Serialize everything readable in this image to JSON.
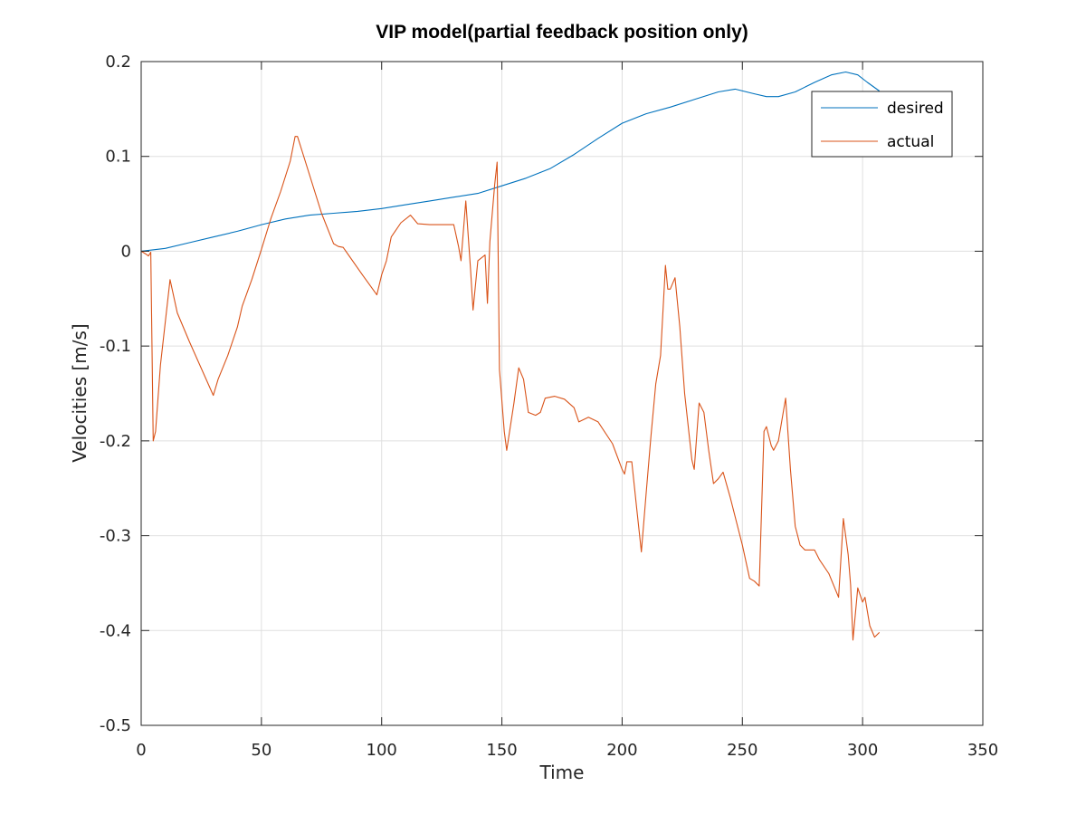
{
  "chart_data": {
    "type": "line",
    "title": "VIP model(partial feedback position only)",
    "xlabel": "Time",
    "ylabel": "Velocities [m/s]",
    "xlim": [
      0,
      350
    ],
    "ylim": [
      -0.5,
      0.2
    ],
    "xticks": [
      "0",
      "50",
      "100",
      "150",
      "200",
      "250",
      "300",
      "350"
    ],
    "yticks": [
      "0.2",
      "0.1",
      "0",
      "-0.1",
      "-0.2",
      "-0.3",
      "-0.4",
      "-0.5"
    ],
    "grid": true,
    "legend_position": "top-right",
    "series": [
      {
        "name": "desired",
        "color": "#0072BD",
        "points": [
          [
            0,
            0
          ],
          [
            10,
            0.003
          ],
          [
            20,
            0.009
          ],
          [
            30,
            0.015
          ],
          [
            40,
            0.021
          ],
          [
            50,
            0.028
          ],
          [
            60,
            0.034
          ],
          [
            70,
            0.038
          ],
          [
            80,
            0.04
          ],
          [
            90,
            0.042
          ],
          [
            100,
            0.045
          ],
          [
            110,
            0.049
          ],
          [
            120,
            0.053
          ],
          [
            130,
            0.057
          ],
          [
            140,
            0.061
          ],
          [
            150,
            0.069
          ],
          [
            160,
            0.077
          ],
          [
            170,
            0.087
          ],
          [
            180,
            0.102
          ],
          [
            190,
            0.119
          ],
          [
            200,
            0.135
          ],
          [
            210,
            0.145
          ],
          [
            220,
            0.152
          ],
          [
            230,
            0.16
          ],
          [
            240,
            0.168
          ],
          [
            247,
            0.171
          ],
          [
            255,
            0.166
          ],
          [
            260,
            0.163
          ],
          [
            265,
            0.163
          ],
          [
            272,
            0.168
          ],
          [
            280,
            0.178
          ],
          [
            287,
            0.186
          ],
          [
            293,
            0.189
          ],
          [
            298,
            0.186
          ],
          [
            302,
            0.178
          ],
          [
            307,
            0.169
          ]
        ]
      },
      {
        "name": "actual",
        "color": "#D95319",
        "points": [
          [
            0,
            0
          ],
          [
            2,
            -0.003
          ],
          [
            3,
            -0.005
          ],
          [
            4,
            -0.001
          ],
          [
            5,
            -0.2
          ],
          [
            6,
            -0.19
          ],
          [
            8,
            -0.12
          ],
          [
            12,
            -0.03
          ],
          [
            15,
            -0.065
          ],
          [
            20,
            -0.095
          ],
          [
            30,
            -0.152
          ],
          [
            32,
            -0.135
          ],
          [
            36,
            -0.11
          ],
          [
            40,
            -0.08
          ],
          [
            42,
            -0.058
          ],
          [
            46,
            -0.03
          ],
          [
            50,
            0.002
          ],
          [
            54,
            0.035
          ],
          [
            58,
            0.063
          ],
          [
            62,
            0.095
          ],
          [
            64,
            0.121
          ],
          [
            65,
            0.121
          ],
          [
            67,
            0.105
          ],
          [
            75,
            0.04
          ],
          [
            80,
            0.008
          ],
          [
            82,
            0.005
          ],
          [
            84,
            0.004
          ],
          [
            92,
            -0.025
          ],
          [
            98,
            -0.046
          ],
          [
            100,
            -0.025
          ],
          [
            102,
            -0.01
          ],
          [
            104,
            0.015
          ],
          [
            108,
            0.03
          ],
          [
            112,
            0.038
          ],
          [
            115,
            0.029
          ],
          [
            120,
            0.028
          ],
          [
            130,
            0.028
          ],
          [
            132,
            0.005
          ],
          [
            133,
            -0.01
          ],
          [
            135,
            0.053
          ],
          [
            137,
            -0.02
          ],
          [
            138,
            -0.062
          ],
          [
            140,
            -0.01
          ],
          [
            143,
            -0.004
          ],
          [
            144,
            -0.055
          ],
          [
            145,
            0.01
          ],
          [
            147,
            0.07
          ],
          [
            148,
            0.094
          ],
          [
            149,
            -0.125
          ],
          [
            151,
            -0.19
          ],
          [
            152,
            -0.21
          ],
          [
            155,
            -0.16
          ],
          [
            157,
            -0.123
          ],
          [
            159,
            -0.135
          ],
          [
            161,
            -0.17
          ],
          [
            164,
            -0.173
          ],
          [
            166,
            -0.17
          ],
          [
            168,
            -0.155
          ],
          [
            172,
            -0.153
          ],
          [
            176,
            -0.156
          ],
          [
            180,
            -0.165
          ],
          [
            182,
            -0.18
          ],
          [
            186,
            -0.175
          ],
          [
            190,
            -0.18
          ],
          [
            196,
            -0.203
          ],
          [
            200,
            -0.23
          ],
          [
            201,
            -0.235
          ],
          [
            202,
            -0.222
          ],
          [
            204,
            -0.222
          ],
          [
            206,
            -0.27
          ],
          [
            208,
            -0.317
          ],
          [
            210,
            -0.255
          ],
          [
            212,
            -0.195
          ],
          [
            214,
            -0.14
          ],
          [
            216,
            -0.11
          ],
          [
            218,
            -0.015
          ],
          [
            219,
            -0.04
          ],
          [
            220,
            -0.04
          ],
          [
            222,
            -0.028
          ],
          [
            224,
            -0.08
          ],
          [
            226,
            -0.15
          ],
          [
            229,
            -0.22
          ],
          [
            230,
            -0.23
          ],
          [
            232,
            -0.16
          ],
          [
            234,
            -0.17
          ],
          [
            236,
            -0.21
          ],
          [
            238,
            -0.245
          ],
          [
            240,
            -0.24
          ],
          [
            242,
            -0.233
          ],
          [
            245,
            -0.26
          ],
          [
            250,
            -0.31
          ],
          [
            253,
            -0.345
          ],
          [
            255,
            -0.348
          ],
          [
            257,
            -0.353
          ],
          [
            259,
            -0.19
          ],
          [
            260,
            -0.185
          ],
          [
            262,
            -0.205
          ],
          [
            263,
            -0.21
          ],
          [
            265,
            -0.2
          ],
          [
            268,
            -0.155
          ],
          [
            270,
            -0.23
          ],
          [
            272,
            -0.29
          ],
          [
            274,
            -0.31
          ],
          [
            276,
            -0.315
          ],
          [
            280,
            -0.315
          ],
          [
            282,
            -0.325
          ],
          [
            286,
            -0.34
          ],
          [
            290,
            -0.365
          ],
          [
            292,
            -0.282
          ],
          [
            294,
            -0.32
          ],
          [
            295,
            -0.352
          ],
          [
            296,
            -0.41
          ],
          [
            298,
            -0.355
          ],
          [
            300,
            -0.37
          ],
          [
            301,
            -0.365
          ],
          [
            303,
            -0.395
          ],
          [
            305,
            -0.407
          ],
          [
            307,
            -0.402
          ]
        ]
      }
    ]
  }
}
